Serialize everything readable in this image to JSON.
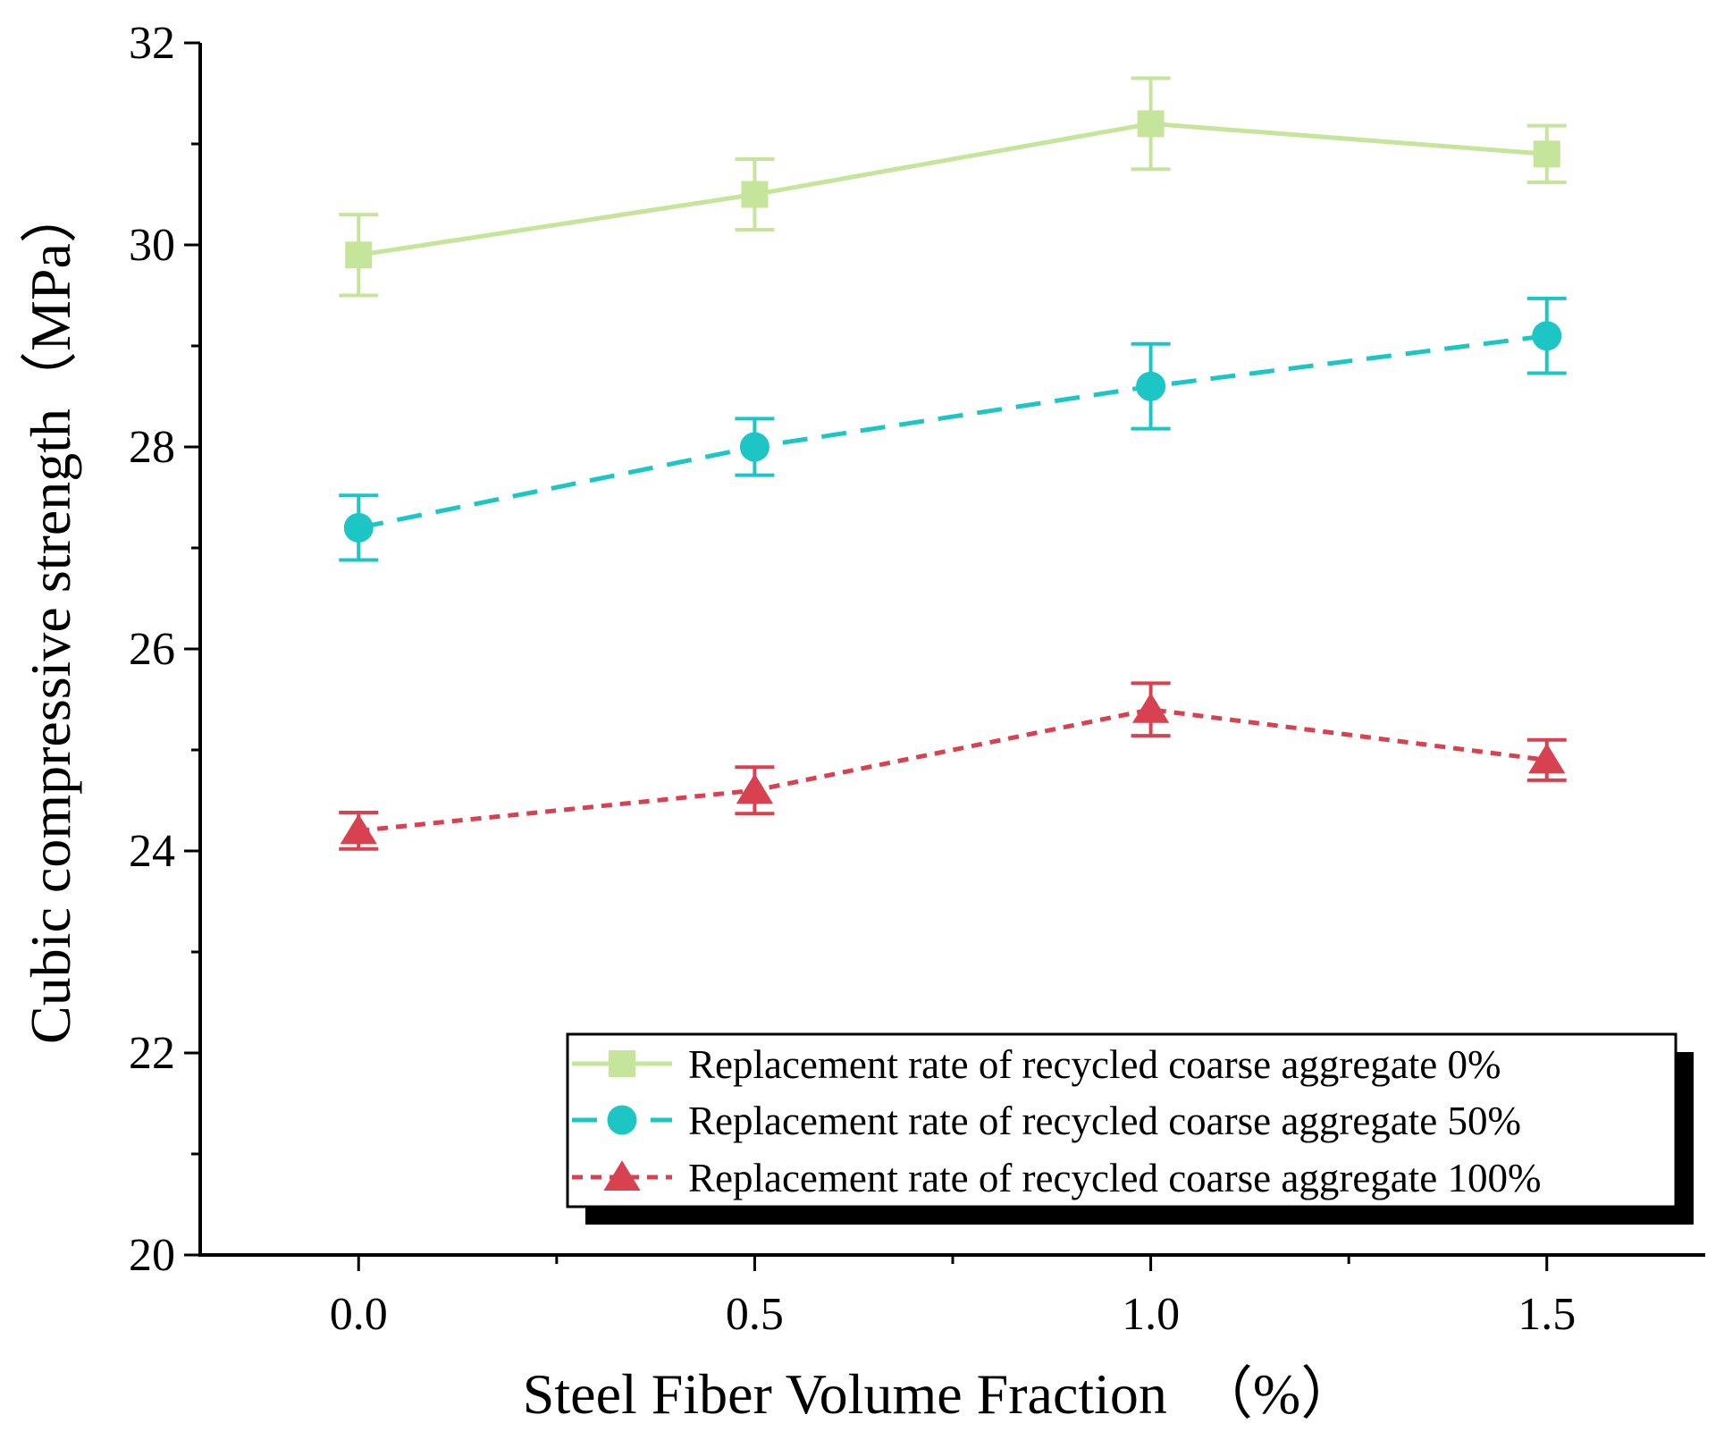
{
  "chart_data": {
    "type": "line",
    "title": "",
    "xlabel": "Steel Fiber Volume Fraction　（%）",
    "ylabel": "Cubic compressive strength（MPa）",
    "x": [
      0.0,
      0.5,
      1.0,
      1.5
    ],
    "xticks": [
      "0.0",
      "0.5",
      "1.0",
      "1.5"
    ],
    "yticks": [
      "20",
      "22",
      "24",
      "26",
      "28",
      "30",
      "32"
    ],
    "xlim": [
      -0.2,
      1.7
    ],
    "ylim": [
      20,
      32
    ],
    "grid": false,
    "legend_position": "bottom-right",
    "series": [
      {
        "name": "Replacement rate of recycled coarse aggregate 0%",
        "values": [
          29.9,
          30.5,
          31.2,
          30.9
        ],
        "errors": [
          0.4,
          0.35,
          0.45,
          0.28
        ],
        "color": "#c5e59a",
        "marker": "square",
        "line_style": "solid"
      },
      {
        "name": "Replacement rate of recycled coarse aggregate 50%",
        "values": [
          27.2,
          28.0,
          28.6,
          29.1
        ],
        "errors": [
          0.32,
          0.28,
          0.42,
          0.37
        ],
        "color": "#1cc6c4",
        "marker": "circle",
        "line_style": "dashed"
      },
      {
        "name": "Replacement rate of recycled coarse aggregate 100%",
        "values": [
          24.2,
          24.6,
          25.4,
          24.9
        ],
        "errors": [
          0.18,
          0.23,
          0.26,
          0.2
        ],
        "color": "#d8414f",
        "marker": "triangle",
        "line_style": "dotted"
      }
    ]
  }
}
